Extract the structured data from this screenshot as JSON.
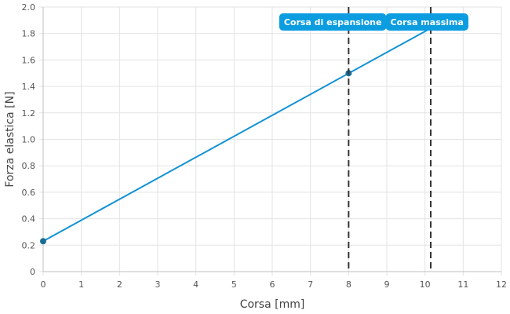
{
  "chart_data": {
    "type": "line",
    "xlabel": "Corsa [mm]",
    "ylabel": "Forza elastica [N]",
    "xlim": [
      0,
      12
    ],
    "ylim": [
      0,
      2.0
    ],
    "x_ticks": [
      "0",
      "1",
      "2",
      "3",
      "4",
      "5",
      "6",
      "7",
      "8",
      "9",
      "10",
      "11",
      "12"
    ],
    "y_ticks": [
      "0",
      "0.2",
      "0.4",
      "0.6",
      "0.8",
      "1.0",
      "1.2",
      "1.4",
      "1.6",
      "1.8",
      "2.0"
    ],
    "grid": true,
    "series": [
      {
        "color": "#1192d4",
        "x": [
          0,
          10.15
        ],
        "y": [
          0.23,
          1.84
        ],
        "markers": [
          {
            "x": 0,
            "y": 0.23
          },
          {
            "x": 8,
            "y": 1.5
          }
        ]
      }
    ],
    "annotations": [
      {
        "label": "Corsa di espansione",
        "x": 8,
        "style": "dashed-vertical"
      },
      {
        "label": "Corsa massima",
        "x": 10.15,
        "style": "dashed-vertical"
      }
    ],
    "colors": {
      "line": "#1192d4",
      "marker": "#1a6e96",
      "annotation_box": "#0b9de0",
      "annotation_line": "#333333",
      "grid": "#e3e3e3",
      "axis": "#bfbfbf"
    }
  }
}
